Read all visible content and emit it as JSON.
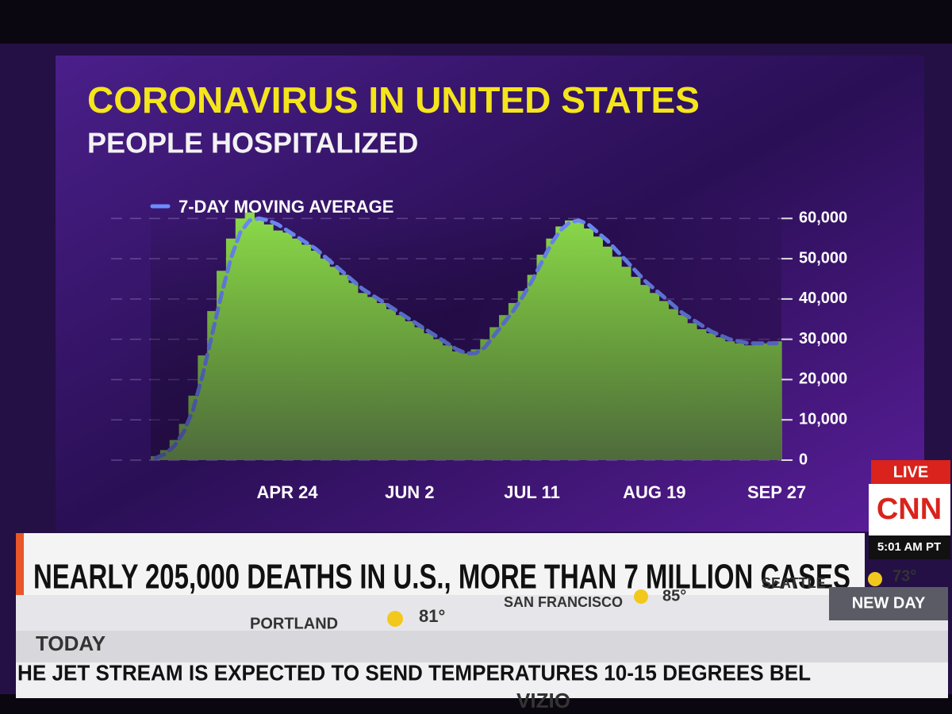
{
  "chart_data": {
    "type": "bar",
    "title": "CORONAVIRUS IN UNITED STATES",
    "subtitle": "PEOPLE HOSPITALIZED",
    "categories": [
      null,
      null,
      null,
      null,
      null,
      null,
      null,
      null,
      null,
      null,
      null,
      null,
      null,
      null,
      "APR 24",
      null,
      null,
      null,
      null,
      null,
      null,
      null,
      null,
      null,
      null,
      null,
      null,
      "JUN 2",
      null,
      null,
      null,
      null,
      null,
      null,
      null,
      null,
      null,
      null,
      null,
      null,
      "JUL 11",
      null,
      null,
      null,
      null,
      null,
      null,
      null,
      null,
      null,
      null,
      null,
      null,
      "AUG 19",
      null,
      null,
      null,
      null,
      null,
      null,
      null,
      null,
      null,
      null,
      null,
      null,
      "SEP 27"
    ],
    "series": [
      {
        "type": "bar",
        "color": "#8fe04c",
        "values": [
          1000,
          2500,
          5000,
          9000,
          16000,
          26000,
          37000,
          47000,
          55000,
          60000,
          61500,
          60000,
          58500,
          57000,
          56500,
          55000,
          53500,
          52000,
          50000,
          48000,
          46000,
          44000,
          41500,
          40500,
          39000,
          37500,
          36000,
          34500,
          33000,
          31500,
          30000,
          28500,
          27000,
          26500,
          27500,
          30000,
          33000,
          36000,
          39000,
          42000,
          46000,
          51000,
          55000,
          58000,
          59500,
          59000,
          57500,
          55500,
          53000,
          50500,
          48000,
          45500,
          43500,
          41500,
          39500,
          37500,
          36000,
          34000,
          32500,
          31500,
          30500,
          29500,
          29000,
          28500,
          29000,
          29000,
          29500
        ]
      },
      {
        "type": "line",
        "name": "7-DAY MOVING AVERAGE",
        "color": "#6f8dff",
        "values": [
          500,
          1500,
          3500,
          7000,
          12500,
          21000,
          31000,
          41000,
          50000,
          56500,
          59500,
          60000,
          59500,
          58500,
          57000,
          55500,
          54000,
          52500,
          50500,
          48500,
          46500,
          44500,
          42500,
          41000,
          39500,
          38000,
          36500,
          35000,
          33500,
          32000,
          30500,
          29000,
          27500,
          26500,
          26500,
          28000,
          31000,
          34000,
          37000,
          40500,
          44500,
          49000,
          53500,
          57000,
          59000,
          59500,
          58500,
          56500,
          54500,
          52000,
          49500,
          47000,
          44500,
          42500,
          40500,
          38500,
          36500,
          35000,
          33500,
          32000,
          31000,
          30000,
          29500,
          29000,
          29000,
          29000,
          29000
        ]
      }
    ],
    "ylim": [
      0,
      64000
    ],
    "yticks": [
      0,
      {
        "value": 10000,
        "label": "10,000"
      },
      {
        "value": 20000,
        "label": "20,000"
      },
      {
        "value": 30000,
        "label": "30,000"
      },
      {
        "value": 40000,
        "label": "40,000"
      },
      {
        "value": 50000,
        "label": "50,000"
      },
      {
        "value": 60000,
        "label": "60,000"
      }
    ],
    "grid": true,
    "legend": "top-left"
  },
  "screen": {
    "headline": "NEARLY 205,000 DEATHS IN U.S., MORE THAN 7 MILLION CASES",
    "live": "LIVE",
    "network": "CNN",
    "time": "5:01 AM PT",
    "show": "NEW DAY",
    "weather": [
      {
        "city": "SAN FRANCISCO",
        "temp": "85°"
      },
      {
        "city": "SEATTLE",
        "temp": "73°"
      },
      {
        "city": "PORTLAND",
        "temp": "81°"
      }
    ],
    "section": "TODAY",
    "ticker": "HE JET STREAM IS EXPECTED TO SEND TEMPERATURES 10-15 DEGREES BEL",
    "brand": "VIZIO"
  }
}
